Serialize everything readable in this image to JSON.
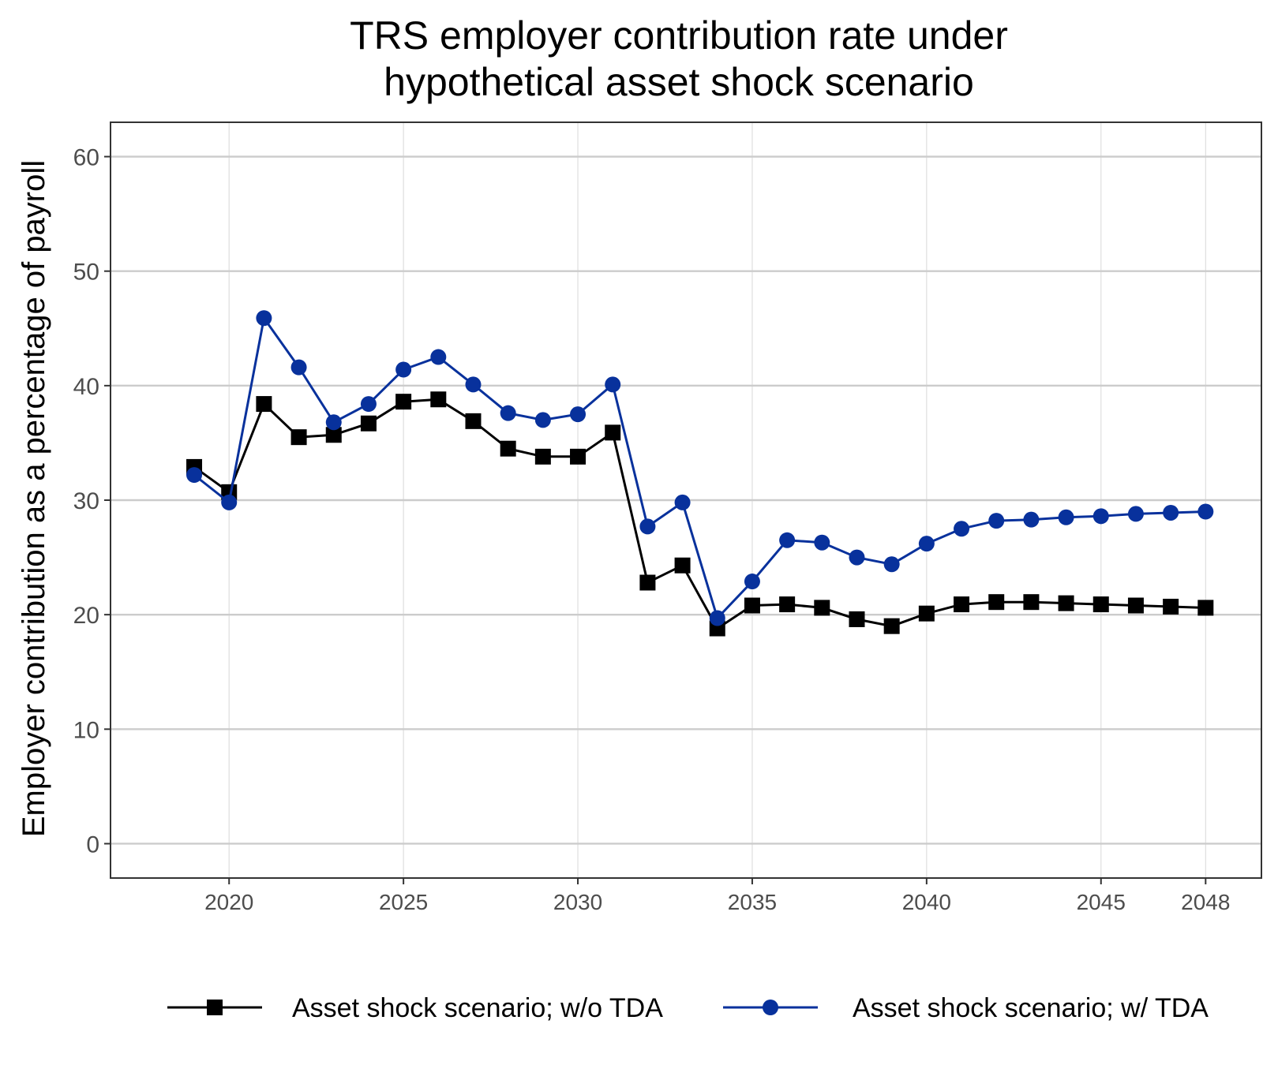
{
  "chart_data": {
    "type": "line",
    "title_lines": [
      "TRS employer contribution rate under",
      "hypothetical asset shock scenario"
    ],
    "xlabel": "",
    "ylabel": "Employer contribution as a percentage of payroll",
    "x": [
      2019,
      2020,
      2021,
      2022,
      2023,
      2024,
      2025,
      2026,
      2027,
      2028,
      2029,
      2030,
      2031,
      2032,
      2033,
      2034,
      2035,
      2036,
      2037,
      2038,
      2039,
      2040,
      2041,
      2042,
      2043,
      2044,
      2045,
      2046,
      2047,
      2048
    ],
    "x_ticks": [
      2020,
      2025,
      2030,
      2035,
      2040,
      2045,
      2048
    ],
    "x_tick_labels": [
      "2020",
      "2025",
      "2030",
      "2035",
      "2040",
      "2045",
      "2048"
    ],
    "xlim": [
      2016.6,
      2049.6
    ],
    "y_ticks": [
      0,
      10,
      20,
      30,
      40,
      50,
      60
    ],
    "y_tick_labels": [
      "0",
      "10",
      "20",
      "30",
      "40",
      "50",
      "60"
    ],
    "ylim": [
      -3,
      63
    ],
    "grid": true,
    "legend_position": "bottom",
    "series": [
      {
        "name": "Asset shock scenario; w/o TDA",
        "color": "#000000",
        "marker": "square",
        "values": [
          32.9,
          30.7,
          38.4,
          35.5,
          35.7,
          36.7,
          38.6,
          38.8,
          36.9,
          34.5,
          33.8,
          33.8,
          35.9,
          22.8,
          24.3,
          18.8,
          20.8,
          20.9,
          20.6,
          19.6,
          19.0,
          20.1,
          20.9,
          21.1,
          21.1,
          21.0,
          20.9,
          20.8,
          20.7,
          20.6
        ]
      },
      {
        "name": "Asset shock scenario; w/ TDA",
        "color": "#08319c",
        "marker": "circle",
        "values": [
          32.2,
          29.8,
          45.9,
          41.6,
          36.8,
          38.4,
          41.4,
          42.5,
          40.1,
          37.6,
          37.0,
          37.5,
          40.1,
          27.7,
          29.8,
          19.7,
          22.9,
          26.5,
          26.3,
          25.0,
          24.4,
          26.2,
          27.5,
          28.2,
          28.3,
          28.5,
          28.6,
          28.8,
          28.9,
          29.0
        ]
      }
    ]
  }
}
